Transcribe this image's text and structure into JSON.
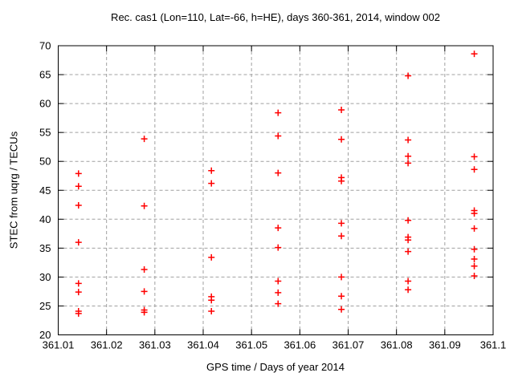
{
  "chart_data": {
    "type": "scatter",
    "title": "Rec. cas1 (Lon=110, Lat=-66, h=HE), days 360-361, 2014, window 002",
    "xlabel": "GPS time / Days of year 2014",
    "ylabel": "STEC from uqrg / TECUs",
    "xlim": [
      361.01,
      361.1
    ],
    "ylim": [
      20,
      70
    ],
    "xtick_labels": [
      "361.01",
      "361.02",
      "361.03",
      "361.04",
      "361.05",
      "361.06",
      "361.07",
      "361.08",
      "361.09",
      "361.1"
    ],
    "ytick_labels": [
      "20",
      "25",
      "30",
      "35",
      "40",
      "45",
      "50",
      "55",
      "60",
      "65",
      "70"
    ],
    "grid": true,
    "legend": "none",
    "marker": "plus",
    "marker_color": "#ff0000",
    "grid_color": "#a0a0a0",
    "border_color": "#000000",
    "series": [
      {
        "name": "STEC",
        "points": [
          [
            361.0142,
            47.9
          ],
          [
            361.0142,
            45.7
          ],
          [
            361.0142,
            42.4
          ],
          [
            361.0142,
            36.0
          ],
          [
            361.0142,
            28.9
          ],
          [
            361.0142,
            27.4
          ],
          [
            361.0142,
            24.1
          ],
          [
            361.0142,
            23.7
          ],
          [
            361.0278,
            53.9
          ],
          [
            361.0278,
            42.3
          ],
          [
            361.0278,
            31.3
          ],
          [
            361.0278,
            27.5
          ],
          [
            361.0278,
            24.3
          ],
          [
            361.0278,
            23.9
          ],
          [
            361.0417,
            48.4
          ],
          [
            361.0417,
            46.2
          ],
          [
            361.0417,
            33.4
          ],
          [
            361.0417,
            26.6
          ],
          [
            361.0417,
            26.0
          ],
          [
            361.0417,
            24.1
          ],
          [
            361.0555,
            58.4
          ],
          [
            361.0555,
            54.4
          ],
          [
            361.0555,
            48.0
          ],
          [
            361.0555,
            38.5
          ],
          [
            361.0555,
            35.1
          ],
          [
            361.0555,
            29.3
          ],
          [
            361.0555,
            27.3
          ],
          [
            361.0555,
            25.4
          ],
          [
            361.0686,
            58.9
          ],
          [
            361.0686,
            53.8
          ],
          [
            361.0686,
            47.2
          ],
          [
            361.0686,
            46.6
          ],
          [
            361.0686,
            39.3
          ],
          [
            361.0686,
            37.1
          ],
          [
            361.0686,
            30.0
          ],
          [
            361.0686,
            26.7
          ],
          [
            361.0686,
            24.4
          ],
          [
            361.0824,
            64.8
          ],
          [
            361.0824,
            53.7
          ],
          [
            361.0824,
            50.9
          ],
          [
            361.0824,
            49.7
          ],
          [
            361.0824,
            39.8
          ],
          [
            361.0824,
            36.9
          ],
          [
            361.0824,
            36.4
          ],
          [
            361.0824,
            34.4
          ],
          [
            361.0824,
            29.3
          ],
          [
            361.0824,
            27.8
          ],
          [
            361.0961,
            68.6
          ],
          [
            361.0961,
            50.8
          ],
          [
            361.0961,
            48.6
          ],
          [
            361.0961,
            41.5
          ],
          [
            361.0961,
            41.0
          ],
          [
            361.0961,
            38.4
          ],
          [
            361.0961,
            34.8
          ],
          [
            361.0961,
            33.1
          ],
          [
            361.0961,
            31.9
          ],
          [
            361.0961,
            30.2
          ]
        ]
      }
    ]
  }
}
